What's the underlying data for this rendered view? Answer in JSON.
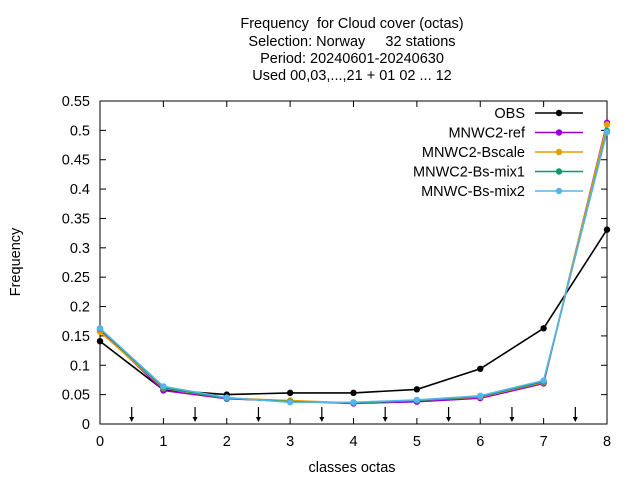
{
  "header": {
    "title_lines": [
      "Frequency  for Cloud cover (octas)",
      "Selection: Norway     32 stations",
      "Period: 20240601-20240630",
      "Used 00,03,...,21 + 01 02 ... 12"
    ]
  },
  "chart_data": {
    "type": "line",
    "xlabel": "classes octas",
    "ylabel": "Frequency",
    "xlim": [
      0,
      8
    ],
    "ylim": [
      0,
      0.55
    ],
    "x_ticks": [
      0,
      1,
      2,
      3,
      4,
      5,
      6,
      7,
      8
    ],
    "y_ticks": [
      0,
      0.05,
      0.1,
      0.15,
      0.2,
      0.25,
      0.3,
      0.35,
      0.4,
      0.45,
      0.5,
      0.55
    ],
    "y_tick_labels": [
      "0",
      "0.05",
      "0.1",
      "0.15",
      "0.2",
      "0.25",
      "0.3",
      "0.35",
      "0.4",
      "0.45",
      "0.5",
      "0.55"
    ],
    "class_boundary_arrows": [
      0.5,
      1.5,
      2.5,
      3.5,
      4.5,
      5.5,
      6.5,
      7.5
    ],
    "grid": false,
    "legend_position": "top-right",
    "x": [
      0,
      1,
      2,
      3,
      4,
      5,
      6,
      7,
      8
    ],
    "series": [
      {
        "name": "OBS",
        "color": "#000000",
        "values": [
          0.141,
          0.058,
          0.05,
          0.053,
          0.053,
          0.059,
          0.094,
          0.163,
          0.331
        ]
      },
      {
        "name": "MNWC2-ref",
        "color": "#9400d3",
        "values": [
          0.16,
          0.057,
          0.043,
          0.039,
          0.035,
          0.038,
          0.044,
          0.069,
          0.513
        ]
      },
      {
        "name": "MNWC2-Bscale",
        "color": "#e69f00",
        "values": [
          0.157,
          0.061,
          0.044,
          0.04,
          0.036,
          0.04,
          0.046,
          0.071,
          0.51
        ]
      },
      {
        "name": "MNWC2-Bs-mix1",
        "color": "#009e73",
        "values": [
          0.162,
          0.062,
          0.044,
          0.038,
          0.036,
          0.04,
          0.047,
          0.072,
          0.499
        ]
      },
      {
        "name": "MNWC-Bs-mix2",
        "color": "#56b4e9",
        "values": [
          0.163,
          0.064,
          0.045,
          0.037,
          0.037,
          0.041,
          0.048,
          0.074,
          0.497
        ]
      }
    ]
  }
}
